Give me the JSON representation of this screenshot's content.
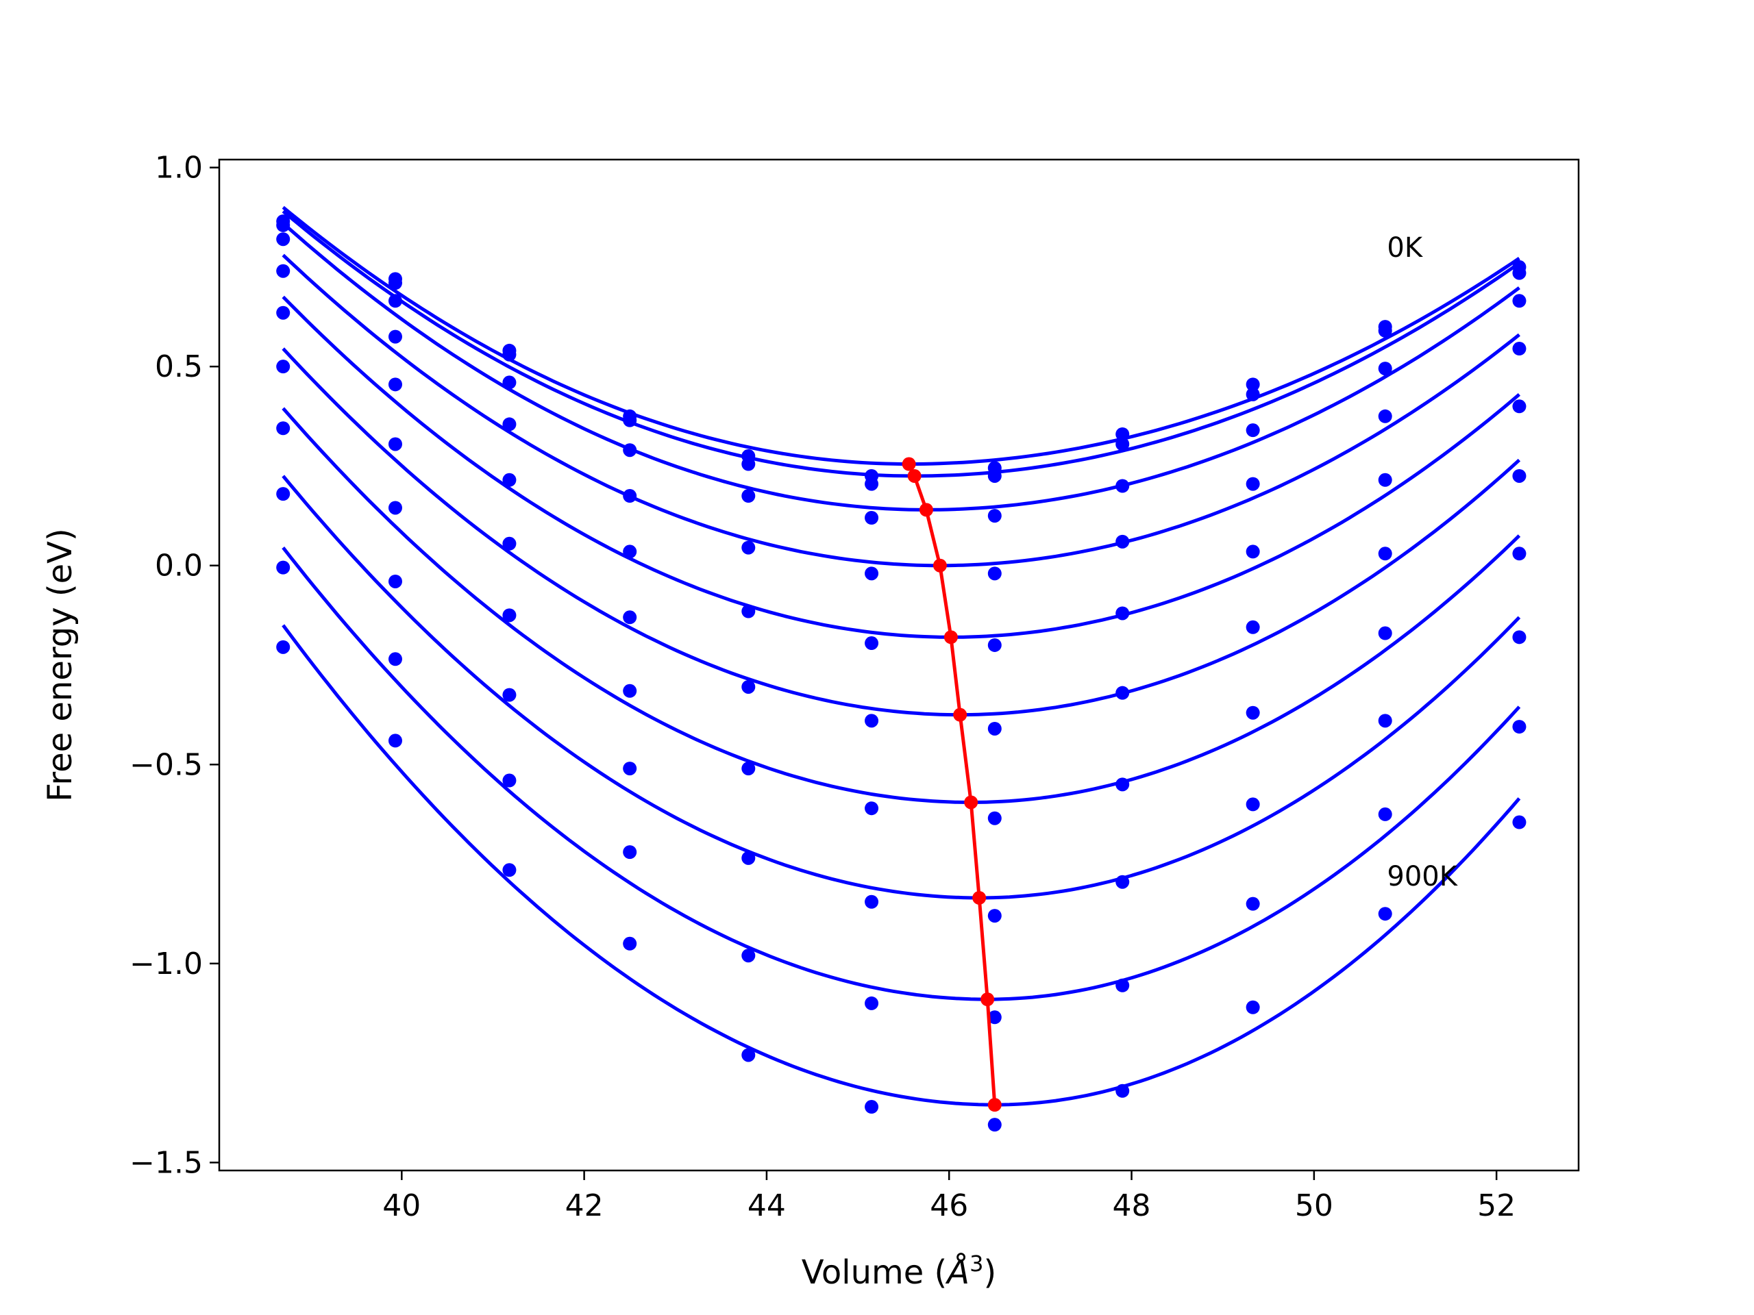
{
  "chart_data": {
    "type": "line",
    "title": "",
    "xlabel": "Volume (",
    "xlabel_symbol": "Å",
    "xlabel_sup": "3",
    "xlabel_close": ")",
    "ylabel": "Free energy (eV)",
    "xlim": [
      38.0,
      52.9
    ],
    "ylim": [
      -1.52,
      1.02
    ],
    "xticks": [
      40,
      42,
      44,
      46,
      48,
      50,
      52
    ],
    "xtick_labels": [
      "40",
      "42",
      "44",
      "46",
      "48",
      "50",
      "52"
    ],
    "yticks": [
      1.0,
      0.5,
      0.0,
      -0.5,
      -1.0,
      -1.5
    ],
    "ytick_labels": [
      "1.0",
      "0.5",
      "0.0",
      "−0.5",
      "−1.0",
      "−1.5"
    ],
    "grid": false,
    "legend": "none",
    "annotations": [
      {
        "text": "0K",
        "x": 50.8,
        "y": 0.8
      },
      {
        "text": "900K",
        "x": 50.8,
        "y": -0.78
      }
    ],
    "colors": {
      "fit": "#0000ff",
      "points": "#0000ff",
      "minima": "#ff0000"
    },
    "fit_range": [
      38.7,
      52.25
    ],
    "volumes": [
      38.7,
      39.93,
      41.18,
      42.5,
      43.8,
      45.15,
      46.5,
      47.9,
      49.33,
      50.78,
      52.25
    ],
    "series": [
      {
        "fit_min": {
          "x": 45.56,
          "y": 0.255
        },
        "fit_ends": [
          0.9,
          0.772
        ],
        "points": [
          0.865,
          0.72,
          0.54,
          0.375,
          0.275,
          0.225,
          0.245,
          0.33,
          0.455,
          0.6,
          0.75
        ]
      },
      {
        "fit_min": {
          "x": 45.62,
          "y": 0.225
        },
        "fit_ends": [
          0.89,
          0.76
        ],
        "points": [
          0.855,
          0.71,
          0.53,
          0.365,
          0.255,
          0.205,
          0.225,
          0.305,
          0.43,
          0.59,
          0.735
        ]
      },
      {
        "fit_min": {
          "x": 45.75,
          "y": 0.14
        },
        "fit_ends": [
          0.86,
          0.698
        ],
        "points": [
          0.82,
          0.665,
          0.46,
          0.29,
          0.175,
          0.12,
          0.125,
          0.2,
          0.34,
          0.495,
          0.665
        ]
      },
      {
        "fit_min": {
          "x": 45.9,
          "y": 0.0
        },
        "fit_ends": [
          0.78,
          0.58
        ],
        "points": [
          0.74,
          0.575,
          0.355,
          0.175,
          0.045,
          -0.02,
          -0.02,
          0.06,
          0.205,
          0.375,
          0.545
        ]
      },
      {
        "fit_min": {
          "x": 46.02,
          "y": -0.18
        },
        "fit_ends": [
          0.675,
          0.43
        ],
        "points": [
          0.635,
          0.455,
          0.215,
          0.035,
          -0.115,
          -0.195,
          -0.2,
          -0.12,
          0.035,
          0.215,
          0.4
        ]
      },
      {
        "fit_min": {
          "x": 46.12,
          "y": -0.375
        },
        "fit_ends": [
          0.545,
          0.265
        ],
        "points": [
          0.5,
          0.305,
          0.055,
          -0.13,
          -0.305,
          -0.39,
          -0.41,
          -0.32,
          -0.155,
          0.03,
          0.225
        ]
      },
      {
        "fit_min": {
          "x": 46.24,
          "y": -0.595
        },
        "fit_ends": [
          0.395,
          0.075
        ],
        "points": [
          0.345,
          0.145,
          -0.125,
          -0.315,
          -0.51,
          -0.61,
          -0.635,
          -0.55,
          -0.37,
          -0.17,
          0.03
        ]
      },
      {
        "fit_min": {
          "x": 46.33,
          "y": -0.835
        },
        "fit_ends": [
          0.225,
          -0.13
        ],
        "points": [
          0.18,
          -0.04,
          -0.325,
          -0.51,
          -0.735,
          -0.845,
          -0.88,
          -0.795,
          -0.6,
          -0.39,
          -0.18
        ]
      },
      {
        "fit_min": {
          "x": 46.42,
          "y": -1.09
        },
        "fit_ends": [
          0.045,
          -0.355
        ],
        "points": [
          -0.005,
          -0.235,
          -0.54,
          -0.72,
          -0.98,
          -1.1,
          -1.135,
          -1.055,
          -0.85,
          -0.625,
          -0.405
        ]
      },
      {
        "fit_min": {
          "x": 46.5,
          "y": -1.355
        },
        "fit_ends": [
          -0.15,
          -0.585
        ],
        "points": [
          -0.205,
          -0.44,
          -0.765,
          -0.95,
          -1.23,
          -1.36,
          -1.405,
          -1.32,
          -1.11,
          -0.875,
          -0.645
        ]
      }
    ],
    "minima_line": [
      {
        "x": 45.56,
        "y": 0.255
      },
      {
        "x": 45.62,
        "y": 0.225
      },
      {
        "x": 45.75,
        "y": 0.14
      },
      {
        "x": 45.9,
        "y": 0.0
      },
      {
        "x": 46.02,
        "y": -0.18
      },
      {
        "x": 46.12,
        "y": -0.375
      },
      {
        "x": 46.24,
        "y": -0.595
      },
      {
        "x": 46.33,
        "y": -0.835
      },
      {
        "x": 46.42,
        "y": -1.09
      },
      {
        "x": 46.5,
        "y": -1.355
      }
    ]
  }
}
